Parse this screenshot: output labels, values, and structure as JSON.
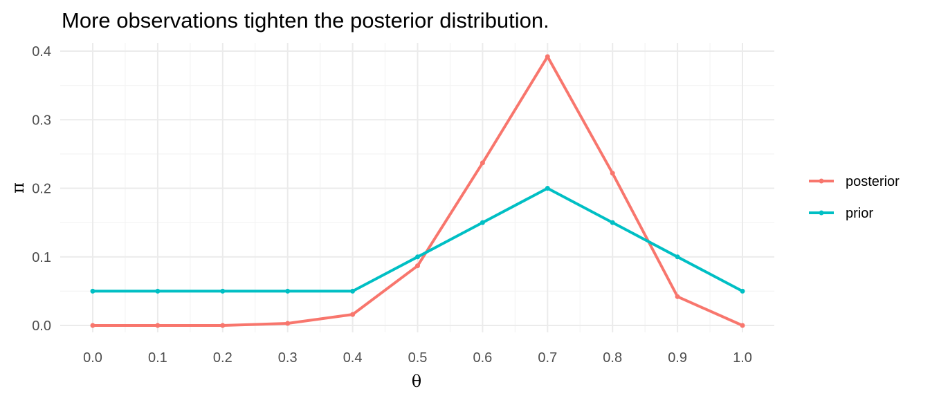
{
  "chart_data": {
    "type": "line",
    "title": "More observations tighten the posterior distribution.",
    "xlabel": "θ",
    "ylabel": "π",
    "x": [
      0.0,
      0.1,
      0.2,
      0.3,
      0.4,
      0.5,
      0.6,
      0.7,
      0.8,
      0.9,
      1.0
    ],
    "x_tick_labels": [
      "0.0",
      "0.1",
      "0.2",
      "0.3",
      "0.4",
      "0.5",
      "0.6",
      "0.7",
      "0.8",
      "0.9",
      "1.0"
    ],
    "y_ticks": [
      0.0,
      0.1,
      0.2,
      0.3,
      0.4
    ],
    "y_tick_labels": [
      "0.0",
      "0.1",
      "0.2",
      "0.3",
      "0.4"
    ],
    "xlim": [
      0.0,
      1.0
    ],
    "ylim": [
      0.0,
      0.4
    ],
    "grid": true,
    "legend_position": "right",
    "series": [
      {
        "name": "posterior",
        "color": "#F8766D",
        "values": [
          0.0,
          0.0,
          0.0,
          0.003,
          0.016,
          0.087,
          0.237,
          0.392,
          0.222,
          0.042,
          0.0
        ]
      },
      {
        "name": "prior",
        "color": "#00BFC4",
        "values": [
          0.05,
          0.05,
          0.05,
          0.05,
          0.05,
          0.1,
          0.15,
          0.2,
          0.15,
          0.1,
          0.05
        ]
      }
    ]
  }
}
